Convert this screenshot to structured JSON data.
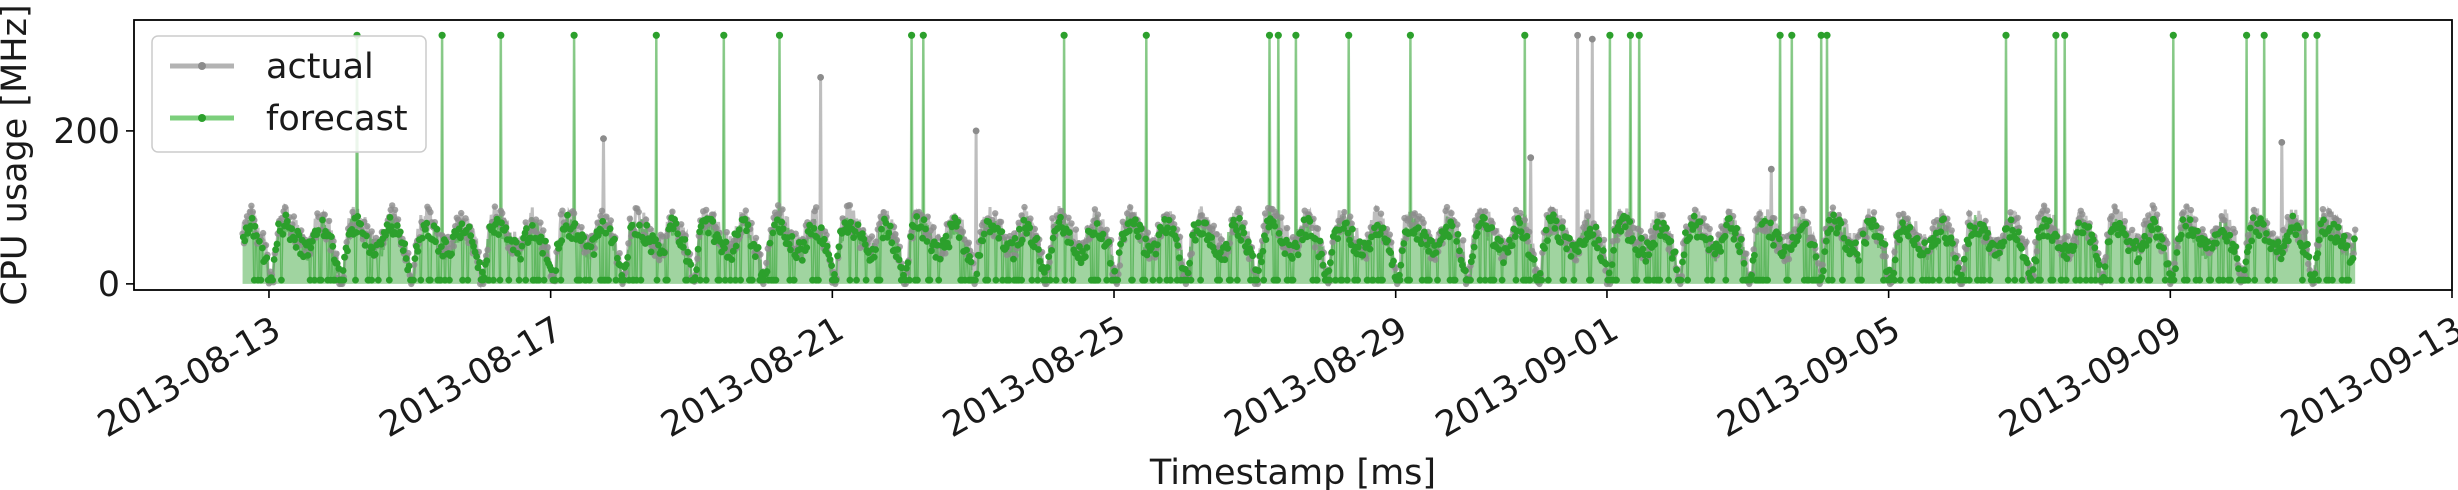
{
  "chart_data": {
    "type": "line",
    "title": "",
    "xlabel": "Timestamp [ms]",
    "ylabel": "CPU usage [MHz]",
    "x_range": [
      "2013-08-11T02:00",
      "2013-09-13T00:00"
    ],
    "ylim": [
      -8,
      345
    ],
    "x_ticks": [
      "2013-08-13",
      "2013-08-17",
      "2013-08-21",
      "2013-08-25",
      "2013-08-29",
      "2013-09-01",
      "2013-09-05",
      "2013-09-09",
      "2013-09-13"
    ],
    "y_ticks": [
      0,
      200
    ],
    "grid": false,
    "legend": {
      "position": "top-left",
      "entries": [
        "actual",
        "forecast"
      ]
    },
    "data_span": [
      "2013-08-12T15:00",
      "2013-09-11T15:00"
    ],
    "series": [
      {
        "name": "actual",
        "color": "#b3b3b3",
        "marker_color": "#8c8c8c",
        "daily_pattern": {
          "unit": "CPU usage [MHz] by hour of day",
          "baseline": [
            10,
            0,
            40,
            70,
            80,
            85,
            85,
            80,
            75,
            70,
            60,
            55,
            50,
            45,
            50,
            60,
            70,
            80,
            85,
            80,
            70,
            60,
            50,
            40
          ],
          "typical_range": [
            20,
            110
          ]
        },
        "spikes": [
          {
            "x": "2013-08-17T18:00",
            "y": 190
          },
          {
            "x": "2013-08-20T20:00",
            "y": 270
          },
          {
            "x": "2013-08-23T01:00",
            "y": 200
          },
          {
            "x": "2013-08-30T22:00",
            "y": 165
          },
          {
            "x": "2013-08-31T14:00",
            "y": 325
          },
          {
            "x": "2013-08-31T19:00",
            "y": 320
          },
          {
            "x": "2013-09-03T08:00",
            "y": 150
          },
          {
            "x": "2013-09-10T14:00",
            "y": 185
          }
        ]
      },
      {
        "name": "forecast",
        "color": "#2ca02c",
        "fill_color": "#2ca02c",
        "fill_opacity": 0.45,
        "daily_pattern": {
          "unit": "CPU usage [MHz] by hour of day",
          "typical_range": [
            5,
            100
          ],
          "floor_value": 5
        },
        "spikes": [
          {
            "x": "2013-08-14T06:00",
            "y": 325
          },
          {
            "x": "2013-08-15T11:00",
            "y": 325
          },
          {
            "x": "2013-08-16T07:00",
            "y": 325
          },
          {
            "x": "2013-08-17T08:00",
            "y": 325
          },
          {
            "x": "2013-08-18T12:00",
            "y": 325
          },
          {
            "x": "2013-08-19T11:00",
            "y": 325
          },
          {
            "x": "2013-08-20T06:00",
            "y": 325
          },
          {
            "x": "2013-08-22T03:00",
            "y": 325
          },
          {
            "x": "2013-08-22T07:00",
            "y": 325
          },
          {
            "x": "2013-08-24T07:00",
            "y": 325
          },
          {
            "x": "2013-08-25T11:00",
            "y": 325
          },
          {
            "x": "2013-08-27T05:00",
            "y": 325
          },
          {
            "x": "2013-08-27T08:00",
            "y": 325
          },
          {
            "x": "2013-08-27T14:00",
            "y": 325
          },
          {
            "x": "2013-08-28T08:00",
            "y": 325
          },
          {
            "x": "2013-08-29T05:00",
            "y": 325
          },
          {
            "x": "2013-08-30T20:00",
            "y": 325
          },
          {
            "x": "2013-09-01T01:00",
            "y": 325
          },
          {
            "x": "2013-09-01T08:00",
            "y": 325
          },
          {
            "x": "2013-09-01T11:00",
            "y": 325
          },
          {
            "x": "2013-09-03T11:00",
            "y": 325
          },
          {
            "x": "2013-09-03T15:00",
            "y": 325
          },
          {
            "x": "2013-09-04T01:00",
            "y": 325
          },
          {
            "x": "2013-09-04T03:00",
            "y": 325
          },
          {
            "x": "2013-09-06T16:00",
            "y": 325
          },
          {
            "x": "2013-09-07T09:00",
            "y": 325
          },
          {
            "x": "2013-09-07T12:00",
            "y": 325
          },
          {
            "x": "2013-09-09T01:00",
            "y": 325
          },
          {
            "x": "2013-09-10T02:00",
            "y": 325
          },
          {
            "x": "2013-09-10T08:00",
            "y": 325
          },
          {
            "x": "2013-09-10T22:00",
            "y": 325
          },
          {
            "x": "2013-09-11T02:00",
            "y": 325
          }
        ]
      }
    ]
  }
}
